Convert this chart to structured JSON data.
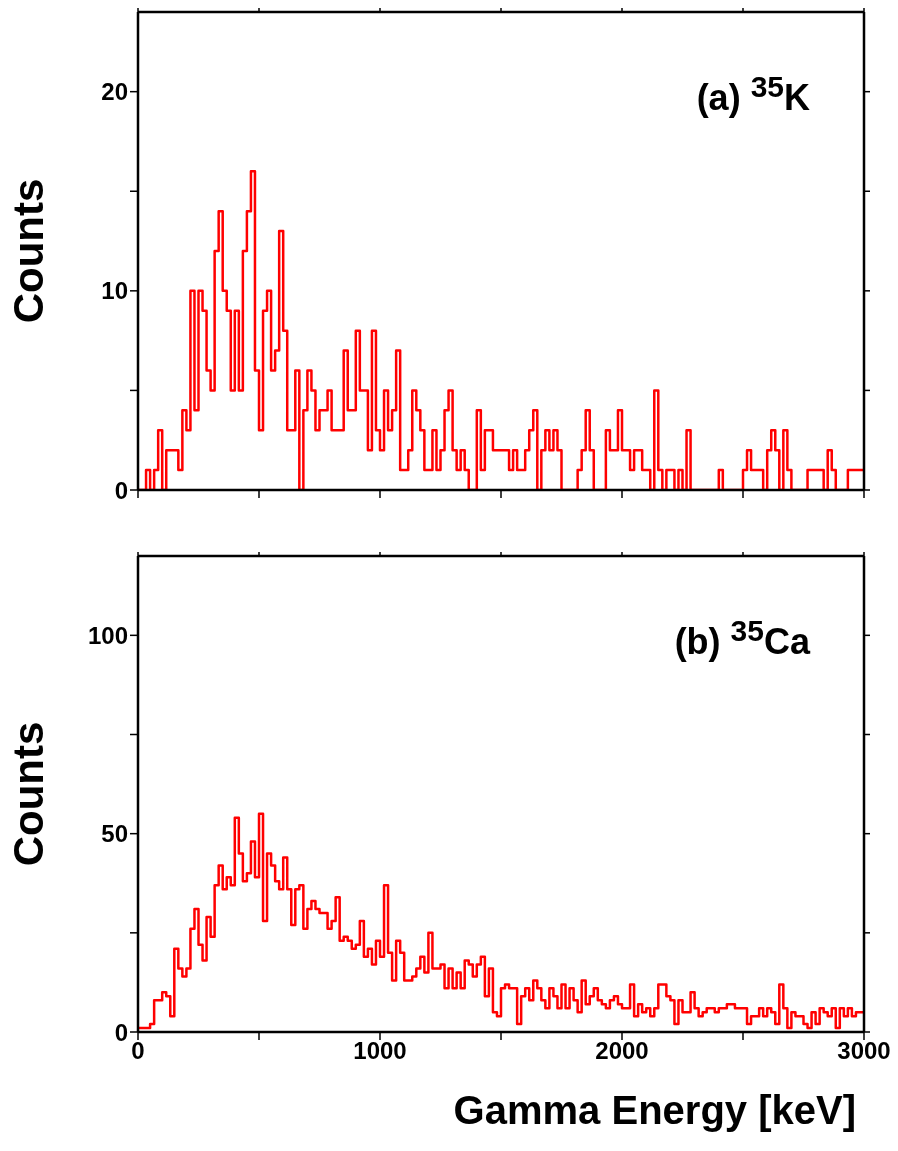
{
  "chart_data": [
    {
      "type": "histogram",
      "ylabel": "Counts",
      "annotations": [
        "(a) $^{35}$K"
      ],
      "color": "#ff0000",
      "bins": [
        0,
        16.67,
        33.33,
        50,
        66.67,
        83.33,
        100,
        116.67,
        133.33,
        150,
        166.67,
        183.33,
        200,
        216.67,
        233.33,
        250,
        266.67,
        283.33,
        300,
        316.67,
        333.33,
        350,
        366.67,
        383.33,
        400,
        416.67,
        433.33,
        450,
        466.67,
        483.33,
        500,
        516.67,
        533.33,
        550,
        566.67,
        583.33,
        600,
        616.67,
        633.33,
        650,
        666.67,
        683.33,
        700,
        716.67,
        733.33,
        750,
        766.67,
        783.33,
        800,
        816.67,
        833.33,
        850,
        866.67,
        883.33,
        900,
        916.67,
        933.33,
        950,
        966.67,
        983.33,
        1000,
        1016.67,
        1033.33,
        1050,
        1066.67,
        1083.33,
        1100,
        1116.67,
        1133.33,
        1150,
        1166.67,
        1183.33,
        1200,
        1216.67,
        1233.33,
        1250,
        1266.67,
        1283.33,
        1300,
        1316.67,
        1333.33,
        1350,
        1366.67,
        1383.33,
        1400,
        1416.67,
        1433.33,
        1450,
        1466.67,
        1483.33,
        1500,
        1516.67,
        1533.33,
        1550,
        1566.67,
        1583.33,
        1600,
        1616.67,
        1633.33,
        1650,
        1666.67,
        1683.33,
        1700,
        1716.67,
        1733.33,
        1750,
        1766.67,
        1783.33,
        1800,
        1816.67,
        1833.33,
        1850,
        1866.67,
        1883.33,
        1900,
        1916.67,
        1933.33,
        1950,
        1966.67,
        1983.33,
        2000,
        2016.67,
        2033.33,
        2050,
        2066.67,
        2083.33,
        2100,
        2116.67,
        2133.33,
        2150,
        2166.67,
        2183.33,
        2200,
        2216.67,
        2233.33,
        2250,
        2266.67,
        2283.33,
        2300,
        2316.67,
        2333.33,
        2350,
        2366.67,
        2383.33,
        2400,
        2416.67,
        2433.33,
        2450,
        2466.67,
        2483.33,
        2500,
        2516.67,
        2533.33,
        2550,
        2566.67,
        2583.33,
        2600,
        2616.67,
        2633.33,
        2650,
        2666.67,
        2683.33,
        2700,
        2716.67,
        2733.33,
        2750,
        2766.67,
        2783.33,
        2800,
        2816.67,
        2833.33,
        2850,
        2866.67,
        2883.33,
        2900,
        2916.67,
        2933.33,
        2950,
        2966.67,
        2983.33,
        3000
      ],
      "values": [
        0,
        0,
        1,
        0,
        1,
        3,
        0,
        2,
        2,
        2,
        1,
        4,
        3,
        10,
        4,
        10,
        9,
        6,
        5,
        12,
        14,
        10,
        9,
        5,
        9,
        5,
        12,
        14,
        16,
        6,
        3,
        9,
        10,
        6,
        7,
        13,
        8,
        3,
        3,
        6,
        0,
        4,
        6,
        5,
        3,
        4,
        4,
        5,
        3,
        3,
        3,
        7,
        4,
        4,
        8,
        5,
        5,
        2,
        8,
        3,
        2,
        5,
        3,
        4,
        7,
        1,
        1,
        2,
        5,
        4,
        3,
        1,
        1,
        3,
        1,
        2,
        4,
        5,
        2,
        1,
        2,
        1,
        0,
        0,
        4,
        1,
        3,
        3,
        2,
        2,
        2,
        2,
        1,
        2,
        1,
        1,
        2,
        3,
        4,
        0,
        2,
        3,
        2,
        3,
        2,
        0,
        0,
        0,
        0,
        1,
        2,
        4,
        2,
        0,
        0,
        0,
        3,
        2,
        2,
        4,
        2,
        2,
        1,
        2,
        2,
        1,
        1,
        0,
        5,
        1,
        0,
        1,
        1,
        0,
        1,
        0,
        3,
        0,
        0,
        0,
        0,
        0,
        0,
        0,
        1,
        0,
        0,
        0,
        0,
        0,
        1,
        2,
        1,
        1,
        1,
        0,
        2,
        3,
        2,
        0,
        3,
        1,
        0,
        0,
        0,
        0,
        1,
        1,
        1,
        1,
        0,
        2,
        1,
        0,
        0,
        0,
        1,
        1,
        1,
        1
      ],
      "xlim": [
        0,
        3000
      ],
      "xticks": [
        0,
        {
          "value": 500,
          "label": null
        },
        1000,
        {
          "value": 1500,
          "label": null
        },
        2000,
        {
          "value": 2500,
          "label": null
        },
        3000
      ],
      "ylim": [
        0,
        24
      ],
      "yticks": [
        0,
        {
          "value": 5,
          "label": null
        },
        10,
        {
          "value": 15,
          "label": null
        },
        20
      ],
      "tick_labels": "y"
    },
    {
      "type": "histogram",
      "xlabel": "Gamma Energy [keV]",
      "ylabel": "Counts",
      "annotations": [
        "(b) $^{35}$Ca"
      ],
      "color": "#ff0000",
      "bins": [
        0,
        16.67,
        33.33,
        50,
        66.67,
        83.33,
        100,
        116.67,
        133.33,
        150,
        166.67,
        183.33,
        200,
        216.67,
        233.33,
        250,
        266.67,
        283.33,
        300,
        316.67,
        333.33,
        350,
        366.67,
        383.33,
        400,
        416.67,
        433.33,
        450,
        466.67,
        483.33,
        500,
        516.67,
        533.33,
        550,
        566.67,
        583.33,
        600,
        616.67,
        633.33,
        650,
        666.67,
        683.33,
        700,
        716.67,
        733.33,
        750,
        766.67,
        783.33,
        800,
        816.67,
        833.33,
        850,
        866.67,
        883.33,
        900,
        916.67,
        933.33,
        950,
        966.67,
        983.33,
        1000,
        1016.67,
        1033.33,
        1050,
        1066.67,
        1083.33,
        1100,
        1116.67,
        1133.33,
        1150,
        1166.67,
        1183.33,
        1200,
        1216.67,
        1233.33,
        1250,
        1266.67,
        1283.33,
        1300,
        1316.67,
        1333.33,
        1350,
        1366.67,
        1383.33,
        1400,
        1416.67,
        1433.33,
        1450,
        1466.67,
        1483.33,
        1500,
        1516.67,
        1533.33,
        1550,
        1566.67,
        1583.33,
        1600,
        1616.67,
        1633.33,
        1650,
        1666.67,
        1683.33,
        1700,
        1716.67,
        1733.33,
        1750,
        1766.67,
        1783.33,
        1800,
        1816.67,
        1833.33,
        1850,
        1866.67,
        1883.33,
        1900,
        1916.67,
        1933.33,
        1950,
        1966.67,
        1983.33,
        2000,
        2016.67,
        2033.33,
        2050,
        2066.67,
        2083.33,
        2100,
        2116.67,
        2133.33,
        2150,
        2166.67,
        2183.33,
        2200,
        2216.67,
        2233.33,
        2250,
        2266.67,
        2283.33,
        2300,
        2316.67,
        2333.33,
        2350,
        2366.67,
        2383.33,
        2400,
        2416.67,
        2433.33,
        2450,
        2466.67,
        2483.33,
        2500,
        2516.67,
        2533.33,
        2550,
        2566.67,
        2583.33,
        2600,
        2616.67,
        2633.33,
        2650,
        2666.67,
        2683.33,
        2700,
        2716.67,
        2733.33,
        2750,
        2766.67,
        2783.33,
        2800,
        2816.67,
        2833.33,
        2850,
        2866.67,
        2883.33,
        2900,
        2916.67,
        2933.33,
        2950,
        2966.67,
        2983.33,
        3000
      ],
      "values": [
        1,
        1,
        1,
        2,
        8,
        8,
        10,
        9,
        4,
        21,
        16,
        14,
        16,
        26,
        31,
        22,
        18,
        29,
        24,
        37,
        42,
        36,
        39,
        37,
        54,
        45,
        38,
        40,
        48,
        39,
        55,
        28,
        45,
        42,
        38,
        36,
        44,
        36,
        27,
        36,
        37,
        26,
        31,
        33,
        31,
        30,
        30,
        26,
        28,
        34,
        23,
        24,
        23,
        21,
        22,
        28,
        19,
        21,
        17,
        23,
        19,
        37,
        20,
        13,
        23,
        20,
        13,
        13,
        14,
        16,
        19,
        15,
        25,
        16,
        16,
        17,
        11,
        16,
        11,
        15,
        11,
        18,
        17,
        14,
        17,
        19,
        9,
        16,
        5,
        4,
        11,
        12,
        11,
        11,
        2,
        9,
        11,
        8,
        13,
        11,
        8,
        6,
        11,
        9,
        6,
        12,
        6,
        11,
        8,
        5,
        13,
        7,
        9,
        11,
        8,
        7,
        6,
        8,
        9,
        7,
        6,
        6,
        12,
        4,
        7,
        5,
        6,
        4,
        6,
        12,
        12,
        9,
        8,
        2,
        8,
        5,
        5,
        10,
        6,
        4,
        5,
        6,
        6,
        5,
        6,
        6,
        7,
        7,
        6,
        6,
        6,
        2,
        4,
        4,
        6,
        4,
        6,
        5,
        2,
        12,
        6,
        1,
        5,
        4,
        4,
        2,
        1,
        5,
        2,
        6,
        5,
        4,
        6,
        1,
        6,
        4,
        6,
        4,
        5,
        5
      ],
      "xlim": [
        0,
        3000
      ],
      "xticks": [
        0,
        {
          "value": 500,
          "label": null
        },
        1000,
        {
          "value": 1500,
          "label": null
        },
        2000,
        {
          "value": 2500,
          "label": null
        },
        3000
      ],
      "ylim": [
        0,
        120
      ],
      "yticks": [
        0,
        {
          "value": 25,
          "label": null
        },
        50,
        {
          "value": 75,
          "label": null
        },
        100
      ]
    }
  ]
}
